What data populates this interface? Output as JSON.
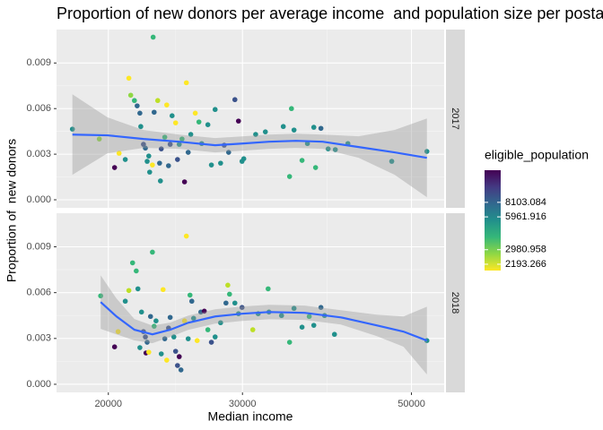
{
  "chart_data": {
    "type": "scatter",
    "title": "Proportion of new donors per average income  and population size per postal code",
    "x_label": "Median income",
    "y_label": "Proportion of  new donors",
    "xlim": [
      17100,
      55200
    ],
    "xlog": true,
    "xticks": [
      20000,
      30000,
      50000
    ],
    "ylim": [
      -0.00053,
      0.0112
    ],
    "yticks": [
      {
        "value": 0,
        "label": "0.000"
      },
      {
        "value": 0.003,
        "label": "0.003"
      },
      {
        "value": 0.006,
        "label": "0.006"
      },
      {
        "value": 0.009,
        "label": "0.009"
      }
    ],
    "grid": true,
    "smooth_color": "#3366ff",
    "legend": {
      "title": "eligible_population",
      "lim": [
        1920,
        15970
      ],
      "log": true,
      "ticks": [
        8103.084,
        5961.916,
        2980.958,
        2193.266
      ],
      "colormap": [
        "#fde725",
        "#8fd744",
        "#35b779",
        "#21908c",
        "#31688e",
        "#443a83",
        "#440154"
      ]
    },
    "panels": [
      {
        "strip": "2017",
        "x": [
          17940,
          19460,
          20380,
          20660,
          21050,
          21280,
          21400,
          21640,
          21820,
          22000,
          22060,
          22240,
          22370,
          22490,
          22600,
          22660,
          22850,
          22900,
          22970,
          23220,
          23350,
          23410,
          23470,
          23720,
          23860,
          23990,
          24110,
          24250,
          24510,
          24650,
          24780,
          24990,
          25180,
          25320,
          25460,
          25660,
          26010,
          26300,
          26520,
          27020,
          27310,
          27620,
          28080,
          28390,
          28770,
          29320,
          29640,
          29960,
          30120,
          31220,
          32150,
          33940,
          34590,
          34790,
          35060,
          35920,
          36510,
          37220,
          37420,
          38030,
          38870,
          39720,
          41260,
          47110,
          52390
        ],
        "y": [
          0.00465,
          0.004,
          0.00212,
          0.00306,
          0.00265,
          0.008,
          0.00688,
          0.00653,
          0.00618,
          0.0057,
          0.00482,
          0.00365,
          0.0034,
          0.00253,
          0.00288,
          0.00182,
          0.00229,
          0.0107,
          0.00576,
          0.00653,
          0.00241,
          0.00124,
          0.00335,
          0.00412,
          0.00624,
          0.00224,
          0.00365,
          0.00553,
          0.00506,
          0.00265,
          0.00365,
          0.004,
          0.00118,
          0.0077,
          0.00312,
          0.0043,
          0.0057,
          0.00512,
          0.0037,
          0.00494,
          0.00229,
          0.00594,
          0.00241,
          0.00359,
          0.00312,
          0.00659,
          0.00518,
          0.00253,
          0.0027,
          0.0043,
          0.00447,
          0.00482,
          0.00153,
          0.006,
          0.00459,
          0.00259,
          0.0037,
          0.00477,
          0.00212,
          0.0047,
          0.00335,
          0.0033,
          0.0037,
          0.00253,
          0.00318
        ],
        "colors": [
          "#21908c",
          "#8fd744",
          "#440154",
          "#fde725",
          "#21908c",
          "#fde725",
          "#8fd744",
          "#35b779",
          "#31688e",
          "#31688e",
          "#21908c",
          "#3b528b",
          "#31688e",
          "#21908c",
          "#21908c",
          "#21908c",
          "#fde725",
          "#35b779",
          "#31688e",
          "#bddf26",
          "#31688e",
          "#21908c",
          "#3b528b",
          "#35b779",
          "#fde725",
          "#31688e",
          "#3b528b",
          "#21908c",
          "#fde725",
          "#3b528b",
          "#21908c",
          "#35b779",
          "#440154",
          "#fde725",
          "#31688e",
          "#21908c",
          "#fde725",
          "#35b779",
          "#21908c",
          "#21908c",
          "#21908c",
          "#21908c",
          "#21908c",
          "#3b528b",
          "#31688e",
          "#3b528b",
          "#440154",
          "#21908c",
          "#21908c",
          "#21908c",
          "#21908c",
          "#21908c",
          "#35b779",
          "#35b779",
          "#21908c",
          "#35b779",
          "#21908c",
          "#21908c",
          "#35b779",
          "#31688e",
          "#21908c",
          "#21908c",
          "#21908c",
          "#21908c",
          "#21908c"
        ],
        "smooth": {
          "x": [
            17940,
            19950,
            22240,
            24780,
            27620,
            29960,
            32500,
            35260,
            38230,
            42620,
            47500,
            52390
          ],
          "y": [
            0.00429,
            0.00424,
            0.004,
            0.00382,
            0.00359,
            0.0037,
            0.00382,
            0.00388,
            0.00382,
            0.00347,
            0.00312,
            0.00276
          ],
          "ymin": [
            0.00164,
            0.00306,
            0.00341,
            0.00335,
            0.00312,
            0.00323,
            0.00335,
            0.00341,
            0.00335,
            0.00276,
            0.00165,
            0.00017
          ],
          "ymax": [
            0.00694,
            0.00542,
            0.00459,
            0.00429,
            0.00406,
            0.00417,
            0.00429,
            0.00435,
            0.00429,
            0.00418,
            0.00459,
            0.00535
          ]
        }
      },
      {
        "strip": "2018",
        "x": [
          19540,
          20380,
          20600,
          21050,
          21520,
          21280,
          21760,
          21870,
          22000,
          22110,
          22240,
          22370,
          22410,
          22490,
          22600,
          22720,
          22850,
          22970,
          23100,
          23470,
          23600,
          23720,
          23860,
          23990,
          24110,
          24380,
          24510,
          24650,
          24780,
          24910,
          25180,
          25320,
          25460,
          25600,
          25740,
          25880,
          26160,
          26450,
          26730,
          27020,
          27310,
          27620,
          28080,
          28540,
          28700,
          28850,
          29320,
          29640,
          29960,
          30950,
          31460,
          32420,
          32500,
          33760,
          34590,
          35060,
          35920,
          36710,
          37220,
          38030,
          38450,
          39620,
          52390
        ],
        "y": [
          0.00579,
          0.00245,
          0.00345,
          0.00544,
          0.00795,
          0.00614,
          0.00742,
          0.00625,
          0.0024,
          0.00473,
          0.00345,
          0.0031,
          0.00205,
          0.00275,
          0.0021,
          0.00444,
          0.00865,
          0.0038,
          0.00415,
          0.00199,
          0.0062,
          0.00298,
          0.00158,
          0.00368,
          0.00438,
          0.0031,
          0.00216,
          0.00123,
          0.00181,
          0.00094,
          0.00415,
          0.0097,
          0.00298,
          0.00584,
          0.00544,
          0.00432,
          0.00286,
          0.00473,
          0.00479,
          0.00357,
          0.00275,
          0.0031,
          0.00403,
          0.00532,
          0.00649,
          0.0059,
          0.00532,
          0.00462,
          0.00503,
          0.00357,
          0.00462,
          0.00625,
          0.00473,
          0.0045,
          0.00275,
          0.00497,
          0.00374,
          0.00444,
          0.00386,
          0.00503,
          0.0045,
          0.00327,
          0.00286
        ],
        "colors": [
          "#35b779",
          "#440154",
          "#fde725",
          "#21908c",
          "#35b779",
          "#bddf26",
          "#35b779",
          "#21908c",
          "#21908c",
          "#21908c",
          "#3b528b",
          "#3b528b",
          "#440154",
          "#31688e",
          "#fde725",
          "#31688e",
          "#35b779",
          "#35b779",
          "#21908c",
          "#21908c",
          "#fde725",
          "#31688e",
          "#fde725",
          "#3b528b",
          "#31688e",
          "#21908c",
          "#3b528b",
          "#3b528b",
          "#440154",
          "#31688e",
          "#fde725",
          "#fde725",
          "#21908c",
          "#35b779",
          "#31688e",
          "#21908c",
          "#fde725",
          "#31688e",
          "#440154",
          "#35b779",
          "#3b528b",
          "#21908c",
          "#21908c",
          "#31688e",
          "#bddf26",
          "#35b779",
          "#21908c",
          "#21908c",
          "#3b528b",
          "#bddf26",
          "#21908c",
          "#35b779",
          "#21908c",
          "#21908c",
          "#35b779",
          "#21908c",
          "#21908c",
          "#35b779",
          "#21908c",
          "#31688e",
          "#21908c",
          "#21908c",
          "#21908c"
        ],
        "smooth": {
          "x": [
            19540,
            20500,
            21640,
            22850,
            24110,
            25460,
            27620,
            29960,
            32500,
            36200,
            40390,
            45000,
            48810,
            52390
          ],
          "y": [
            0.00538,
            0.00444,
            0.00357,
            0.00327,
            0.00357,
            0.00403,
            0.00444,
            0.00462,
            0.00473,
            0.00468,
            0.00438,
            0.00386,
            0.00345,
            0.00286
          ],
          "ymin": [
            0.00363,
            0.00327,
            0.00287,
            0.00269,
            0.0031,
            0.00356,
            0.00397,
            0.00415,
            0.00426,
            0.00421,
            0.00391,
            0.00316,
            0.00246,
            0.00064
          ],
          "ymax": [
            0.00713,
            0.00561,
            0.00427,
            0.00385,
            0.00404,
            0.0045,
            0.00491,
            0.00509,
            0.0052,
            0.00515,
            0.00485,
            0.00456,
            0.00444,
            0.00508
          ]
        }
      }
    ]
  }
}
